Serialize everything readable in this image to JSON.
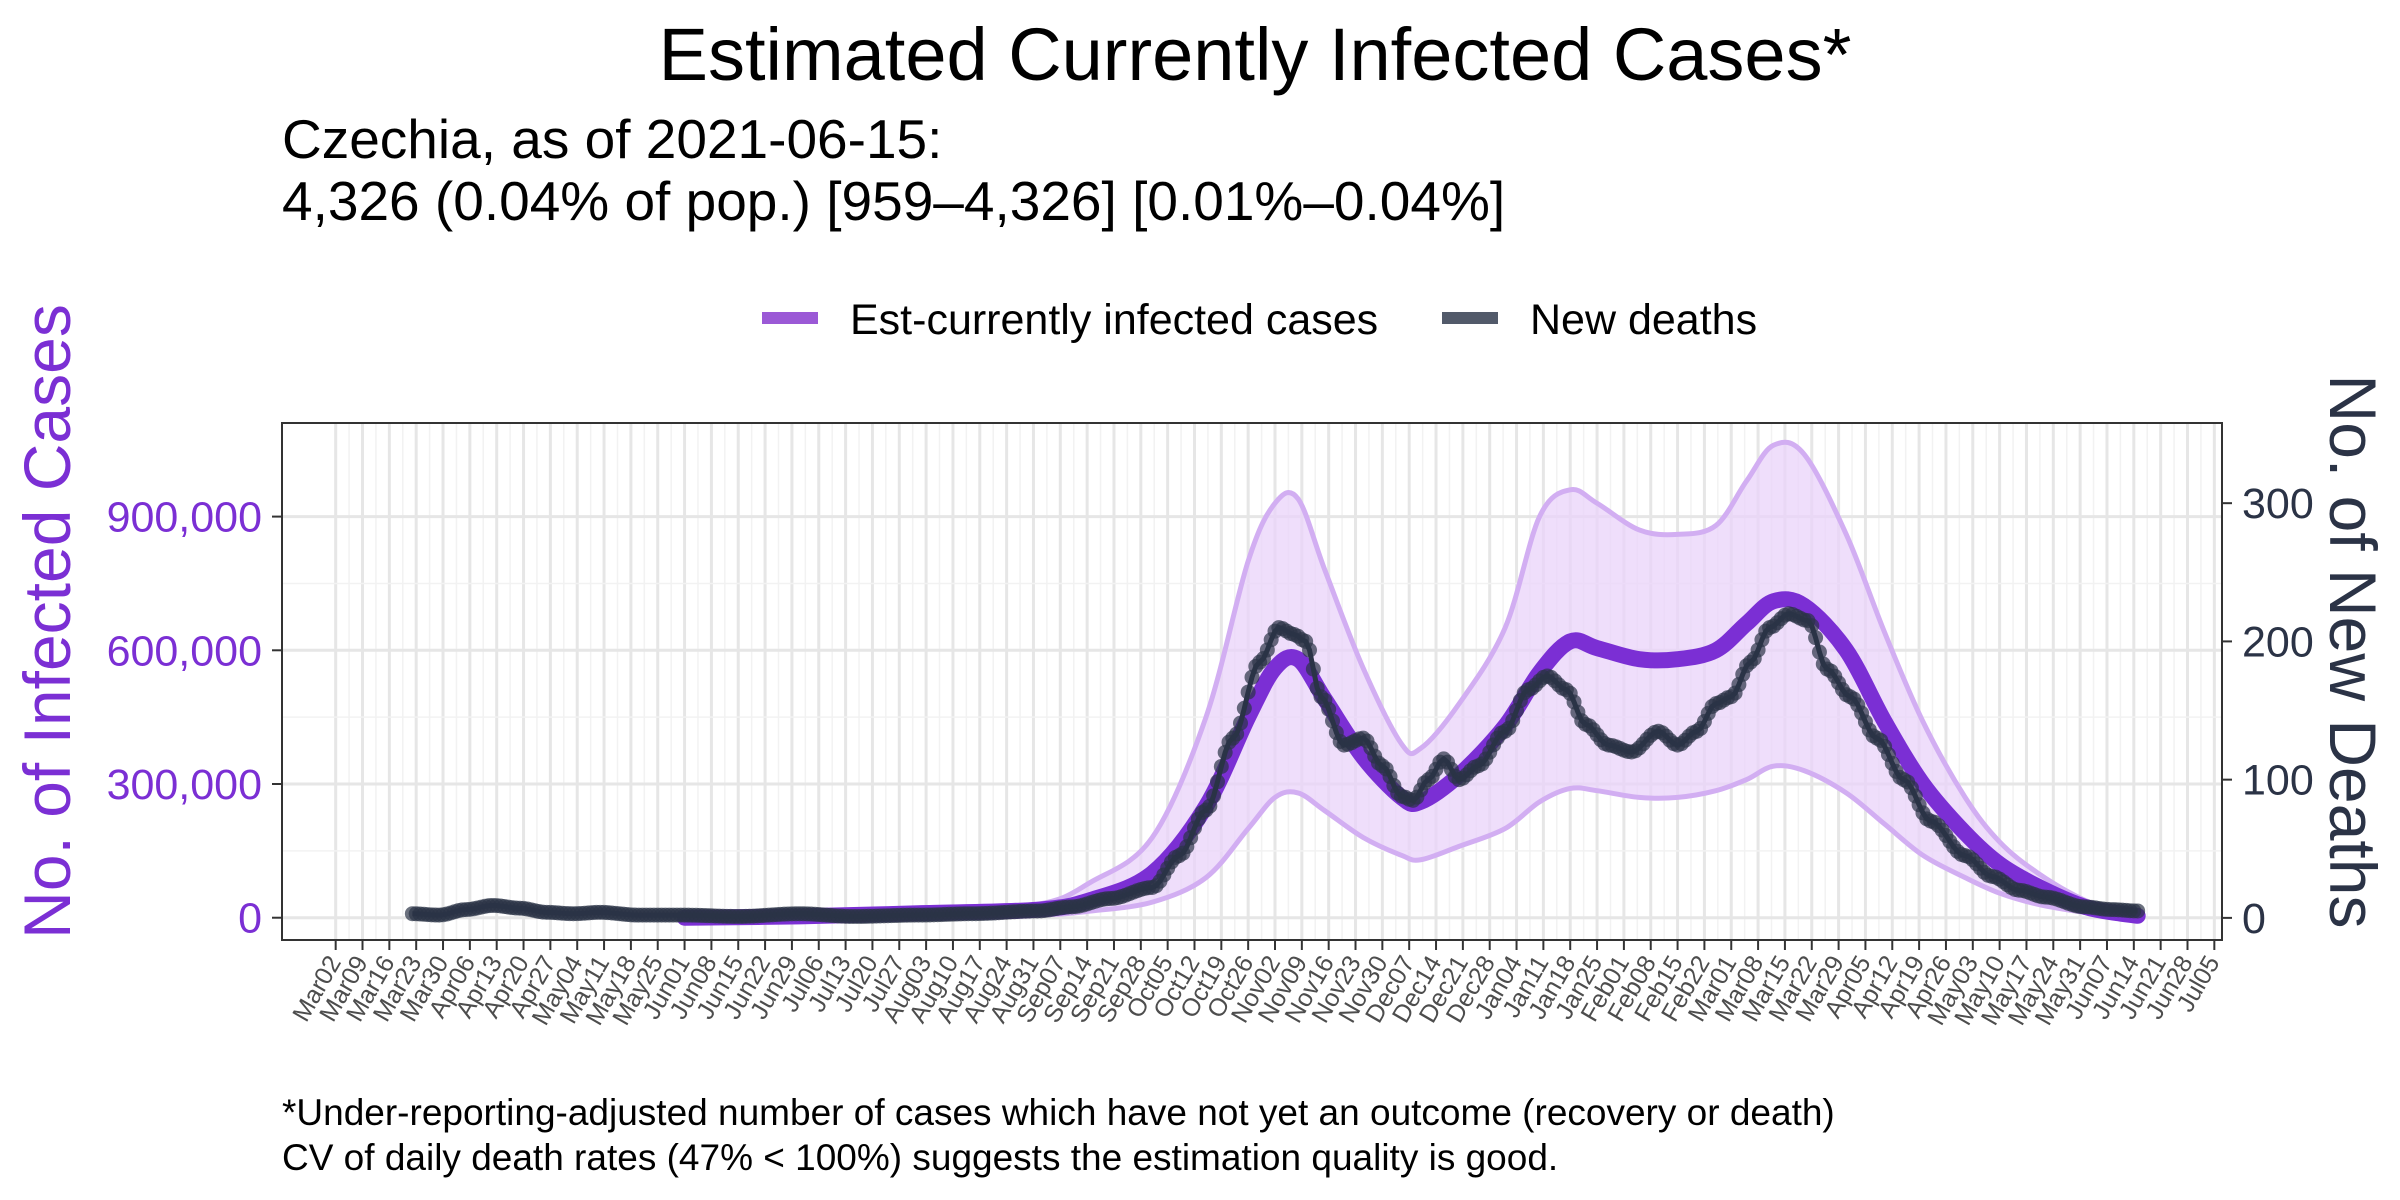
{
  "title": "Estimated Currently Infected Cases*",
  "subtitle_line1": "Czechia, as of 2021-06-15:",
  "subtitle_line2": "4,326 (0.04% of pop.)  [959–4,326]  [0.01%–0.04%]",
  "caption_line1": "*Under-reporting-adjusted number of cases which have not yet an outcome (recovery or death)",
  "caption_line2": "CV of daily death rates (47% < 100%) suggests the estimation quality is good.",
  "colors": {
    "infected": "#7B2FD4",
    "infected_band": "#E9D3FA",
    "infected_band_edge": "#D2AEF2",
    "deaths": "#2B3346",
    "left_axis": "#7B2FD4",
    "right_axis": "#2B3346",
    "grid": "#E6E6E6"
  },
  "chart_data": {
    "type": "line",
    "legend": {
      "position": "top",
      "items": [
        {
          "label": "Est-currently infected cases",
          "color": "#9B59D6"
        },
        {
          "label": "New deaths",
          "color": "#525A6A"
        }
      ]
    },
    "grid": true,
    "ylabel_left": "No. of Infected Cases",
    "ylabel_right": "No. of New Deaths",
    "y_left_ticks": [
      0,
      300000,
      600000,
      900000
    ],
    "y_left_tick_labels": [
      "0",
      "300,000",
      "600,000",
      "900,000"
    ],
    "y_left_lim": [
      -50000,
      1110000
    ],
    "y_right_ticks": [
      0,
      100,
      200,
      300
    ],
    "y_right_tick_labels": [
      "0",
      "100",
      "200",
      "300"
    ],
    "y_right_lim": [
      -16,
      358
    ],
    "x_start": "2020-03-02",
    "x_end": "2021-07-05",
    "x_tick_labels": [
      "Mar02",
      "Mar09",
      "Mar16",
      "Mar23",
      "Mar30",
      "Apr06",
      "Apr13",
      "Apr20",
      "Apr27",
      "May04",
      "May11",
      "May18",
      "May25",
      "Jun01",
      "Jun08",
      "Jun15",
      "Jun22",
      "Jun29",
      "Jul06",
      "Jul13",
      "Jul20",
      "Jul27",
      "Aug03",
      "Aug10",
      "Aug17",
      "Aug24",
      "Aug31",
      "Sep07",
      "Sep14",
      "Sep21",
      "Sep28",
      "Oct05",
      "Oct12",
      "Oct19",
      "Oct26",
      "Nov02",
      "Nov09",
      "Nov16",
      "Nov23",
      "Nov30",
      "Dec07",
      "Dec14",
      "Dec21",
      "Dec28",
      "Jan04",
      "Jan11",
      "Jan18",
      "Jan25",
      "Feb01",
      "Feb08",
      "Feb15",
      "Feb22",
      "Mar01",
      "Mar08",
      "Mar15",
      "Mar22",
      "Mar29",
      "Apr05",
      "Apr12",
      "Apr19",
      "Apr26",
      "May03",
      "May10",
      "May17",
      "May24",
      "May31",
      "Jun07",
      "Jun14",
      "Jun21",
      "Jun28",
      "Jul05"
    ],
    "series": [
      {
        "name": "Est-currently infected cases",
        "axis": "left",
        "x": [
          "2020-06-01",
          "2020-07-01",
          "2020-08-01",
          "2020-09-01",
          "2020-09-15",
          "2020-10-01",
          "2020-10-15",
          "2020-10-26",
          "2020-11-02",
          "2020-11-08",
          "2020-11-15",
          "2020-11-25",
          "2020-12-05",
          "2020-12-10",
          "2020-12-20",
          "2021-01-01",
          "2021-01-10",
          "2021-01-18",
          "2021-01-25",
          "2021-02-05",
          "2021-02-15",
          "2021-02-25",
          "2021-03-05",
          "2021-03-12",
          "2021-03-20",
          "2021-03-31",
          "2021-04-10",
          "2021-04-20",
          "2021-05-01",
          "2021-05-10",
          "2021-05-20",
          "2021-06-01",
          "2021-06-10",
          "2021-06-15"
        ],
        "values": [
          0,
          3000,
          10000,
          18000,
          40000,
          100000,
          250000,
          450000,
          560000,
          580000,
          490000,
          360000,
          270000,
          260000,
          320000,
          430000,
          550000,
          620000,
          605000,
          580000,
          580000,
          600000,
          660000,
          710000,
          700000,
          600000,
          440000,
          300000,
          190000,
          120000,
          70000,
          25000,
          10000,
          4326
        ]
      },
      {
        "name": "Est-currently infected cases (upper)",
        "axis": "left",
        "x": [
          "2020-06-01",
          "2020-07-01",
          "2020-08-01",
          "2020-09-01",
          "2020-09-15",
          "2020-10-01",
          "2020-10-15",
          "2020-10-26",
          "2020-11-02",
          "2020-11-08",
          "2020-11-15",
          "2020-11-25",
          "2020-12-05",
          "2020-12-10",
          "2020-12-20",
          "2021-01-01",
          "2021-01-10",
          "2021-01-18",
          "2021-01-25",
          "2021-02-05",
          "2021-02-15",
          "2021-02-25",
          "2021-03-05",
          "2021-03-12",
          "2021-03-20",
          "2021-03-31",
          "2021-04-10",
          "2021-04-20",
          "2021-05-01",
          "2021-05-10",
          "2021-05-20",
          "2021-06-01",
          "2021-06-10",
          "2021-06-15"
        ],
        "values": [
          0,
          5000,
          15000,
          30000,
          80000,
          180000,
          450000,
          800000,
          930000,
          940000,
          780000,
          560000,
          390000,
          380000,
          480000,
          650000,
          900000,
          960000,
          930000,
          870000,
          860000,
          880000,
          980000,
          1060000,
          1040000,
          860000,
          640000,
          440000,
          270000,
          170000,
          100000,
          40000,
          15000,
          4326
        ]
      },
      {
        "name": "Est-currently infected cases (lower)",
        "axis": "left",
        "x": [
          "2020-06-01",
          "2020-07-01",
          "2020-08-01",
          "2020-09-01",
          "2020-09-15",
          "2020-10-01",
          "2020-10-15",
          "2020-10-26",
          "2020-11-02",
          "2020-11-08",
          "2020-11-15",
          "2020-11-25",
          "2020-12-05",
          "2020-12-10",
          "2020-12-20",
          "2021-01-01",
          "2021-01-10",
          "2021-01-18",
          "2021-01-25",
          "2021-02-05",
          "2021-02-15",
          "2021-02-25",
          "2021-03-05",
          "2021-03-12",
          "2021-03-20",
          "2021-03-31",
          "2021-04-10",
          "2021-04-20",
          "2021-05-01",
          "2021-05-10",
          "2021-05-20",
          "2021-06-01",
          "2021-06-10",
          "2021-06-15"
        ],
        "values": [
          0,
          1000,
          3000,
          6000,
          15000,
          35000,
          90000,
          200000,
          270000,
          280000,
          240000,
          180000,
          140000,
          130000,
          160000,
          200000,
          260000,
          290000,
          285000,
          270000,
          270000,
          285000,
          310000,
          340000,
          330000,
          280000,
          210000,
          140000,
          90000,
          55000,
          30000,
          12000,
          4000,
          959
        ]
      },
      {
        "name": "New deaths",
        "axis": "right",
        "x": [
          "2020-03-22",
          "2020-03-29",
          "2020-04-05",
          "2020-04-12",
          "2020-04-19",
          "2020-04-26",
          "2020-05-03",
          "2020-05-10",
          "2020-05-20",
          "2020-06-01",
          "2020-06-15",
          "2020-07-01",
          "2020-07-15",
          "2020-08-01",
          "2020-08-15",
          "2020-09-01",
          "2020-09-10",
          "2020-09-20",
          "2020-10-01",
          "2020-10-08",
          "2020-10-15",
          "2020-10-22",
          "2020-10-29",
          "2020-11-03",
          "2020-11-07",
          "2020-11-10",
          "2020-11-14",
          "2020-11-20",
          "2020-11-25",
          "2020-11-30",
          "2020-12-05",
          "2020-12-08",
          "2020-12-12",
          "2020-12-16",
          "2020-12-20",
          "2020-12-25",
          "2021-01-01",
          "2021-01-07",
          "2021-01-12",
          "2021-01-17",
          "2021-01-22",
          "2021-01-28",
          "2021-02-03",
          "2021-02-10",
          "2021-02-15",
          "2021-02-20",
          "2021-02-25",
          "2021-03-01",
          "2021-03-06",
          "2021-03-11",
          "2021-03-16",
          "2021-03-21",
          "2021-03-26",
          "2021-04-01",
          "2021-04-08",
          "2021-04-15",
          "2021-04-22",
          "2021-05-01",
          "2021-05-08",
          "2021-05-15",
          "2021-05-22",
          "2021-06-01",
          "2021-06-08",
          "2021-06-15"
        ],
        "values": [
          3,
          2,
          6,
          9,
          7,
          4,
          3,
          4,
          2,
          2,
          1,
          3,
          1,
          2,
          3,
          5,
          8,
          14,
          22,
          45,
          78,
          130,
          185,
          210,
          205,
          200,
          160,
          125,
          130,
          110,
          88,
          85,
          100,
          115,
          100,
          110,
          135,
          165,
          175,
          165,
          140,
          125,
          120,
          135,
          125,
          135,
          155,
          160,
          185,
          210,
          220,
          215,
          180,
          160,
          130,
          100,
          70,
          45,
          30,
          20,
          15,
          8,
          6,
          5
        ]
      }
    ]
  }
}
